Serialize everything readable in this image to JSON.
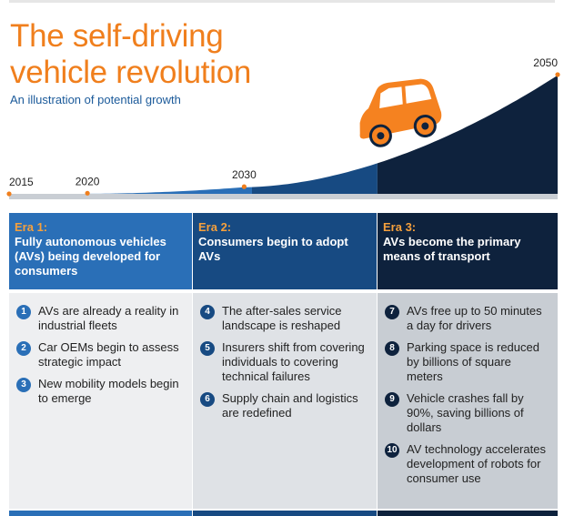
{
  "title": "The self-driving vehicle revolution",
  "subtitle": "An illustration of potential growth",
  "colors": {
    "accent": "#f07f1d",
    "era1": "#2a6fb7",
    "era2": "#174a82",
    "era3": "#0e223d",
    "era1_body": "#eeeff1",
    "era2_body": "#dfe2e6",
    "era3_body": "#c8cdd3"
  },
  "chart_data": {
    "type": "area",
    "x": [
      2015,
      2020,
      2030,
      2050
    ],
    "tick_labels": [
      "2015",
      "2020",
      "2030",
      "2050"
    ],
    "y": [
      0.0,
      0.5,
      6,
      100
    ],
    "title": "The self-driving vehicle revolution",
    "subtitle": "An illustration of potential growth",
    "grid": false,
    "icon": "car-icon"
  },
  "eras": [
    {
      "label": "Era 1:",
      "title": "Fully autonomous vehicles (AVs) being developed for consumers",
      "items": [
        {
          "n": "1",
          "text": "AVs are already a reality in industrial fleets"
        },
        {
          "n": "2",
          "text": "Car OEMs begin to assess strategic impact"
        },
        {
          "n": "3",
          "text": "New mobility models begin to emerge"
        }
      ]
    },
    {
      "label": "Era 2:",
      "title": "Consumers begin to adopt AVs",
      "items": [
        {
          "n": "4",
          "text": "The after-sales service landscape is reshaped"
        },
        {
          "n": "5",
          "text": "Insurers shift from covering individuals to covering technical failures"
        },
        {
          "n": "6",
          "text": "Supply chain and logistics are redefined"
        }
      ]
    },
    {
      "label": "Era 3:",
      "title": "AVs become the primary means of transport",
      "items": [
        {
          "n": "7",
          "text": "AVs free up to 50 minutes a day for drivers"
        },
        {
          "n": "8",
          "text": "Parking space is reduced by billions of square meters"
        },
        {
          "n": "9",
          "text": "Vehicle crashes fall by 90%, saving billions of dollars"
        },
        {
          "n": "10",
          "text": "AV technology accelerates development of robots for consumer use"
        }
      ]
    }
  ]
}
